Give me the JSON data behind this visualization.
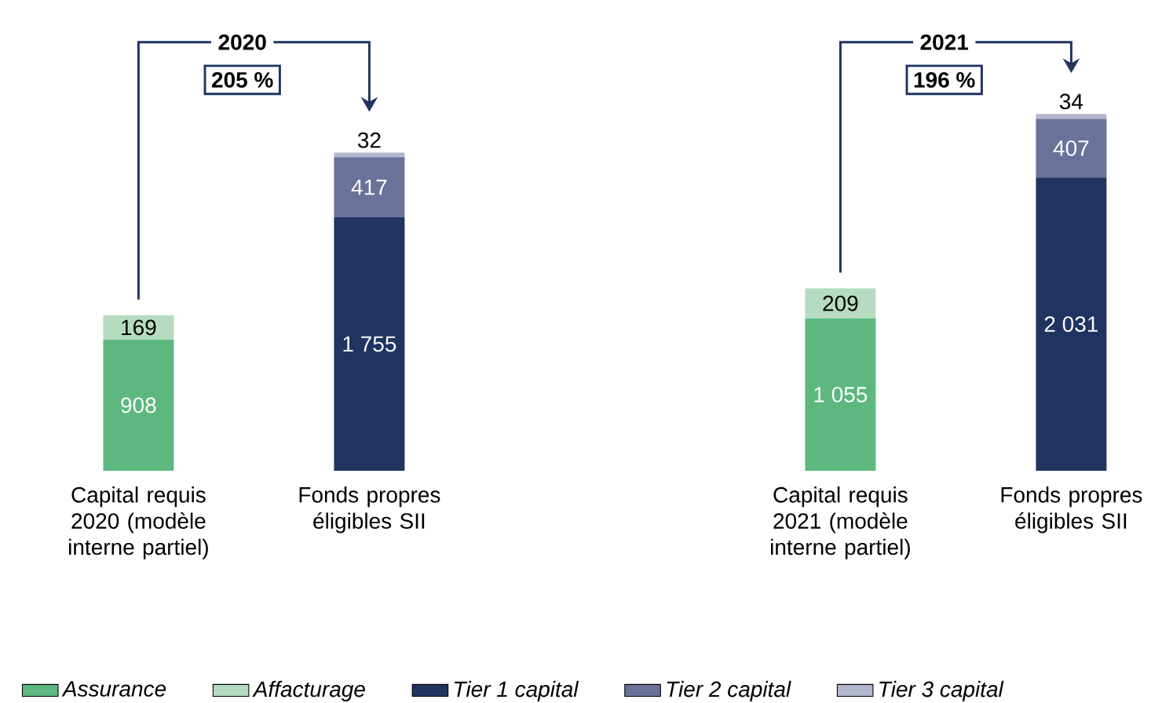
{
  "chart_data": [
    {
      "type": "bar",
      "stacked": true,
      "categories": [
        "Capital requis 2020 (modèle interne partiel)",
        "Fonds propres éligibles SII"
      ],
      "series": [
        {
          "name": "Assurance",
          "color": "#5cb87e",
          "values": [
            908,
            null
          ],
          "value_labels": [
            "908",
            null
          ]
        },
        {
          "name": "Affacturage",
          "color": "#b5dcc0",
          "values": [
            169,
            null
          ],
          "value_labels": [
            "169",
            null
          ]
        },
        {
          "name": "Tier 1 capital",
          "color": "#1f3461",
          "values": [
            null,
            1755
          ],
          "value_labels": [
            null,
            "1 755"
          ]
        },
        {
          "name": "Tier 2 capital",
          "color": "#6b7299",
          "values": [
            null,
            417
          ],
          "value_labels": [
            null,
            "417"
          ]
        },
        {
          "name": "Tier 3 capital",
          "color": "#b3b6cf",
          "values": [
            null,
            32
          ],
          "value_labels": [
            null,
            "32"
          ]
        }
      ],
      "annotations": [
        "2020",
        "205 %"
      ],
      "legend": "bottom"
    },
    {
      "type": "bar",
      "stacked": true,
      "categories": [
        "Capital requis 2021 (modèle interne partiel)",
        "Fonds propres éligibles SII"
      ],
      "series": [
        {
          "color": "#5cb87e",
          "values": [
            1055,
            null
          ],
          "value_labels": [
            "1 055",
            null
          ]
        },
        {
          "color": "#b5dcc0",
          "values": [
            209,
            null
          ],
          "value_labels": [
            "209",
            null
          ]
        },
        {
          "color": "#1f3461",
          "values": [
            null,
            2031
          ],
          "value_labels": [
            null,
            "2 031"
          ]
        },
        {
          "color": "#6b7299",
          "values": [
            null,
            407
          ],
          "value_labels": [
            null,
            "407"
          ]
        },
        {
          "color": "#b3b6cf",
          "values": [
            null,
            34
          ],
          "value_labels": [
            null,
            "34"
          ]
        }
      ],
      "annotations": [
        "2021",
        "196 %"
      ]
    }
  ]
}
